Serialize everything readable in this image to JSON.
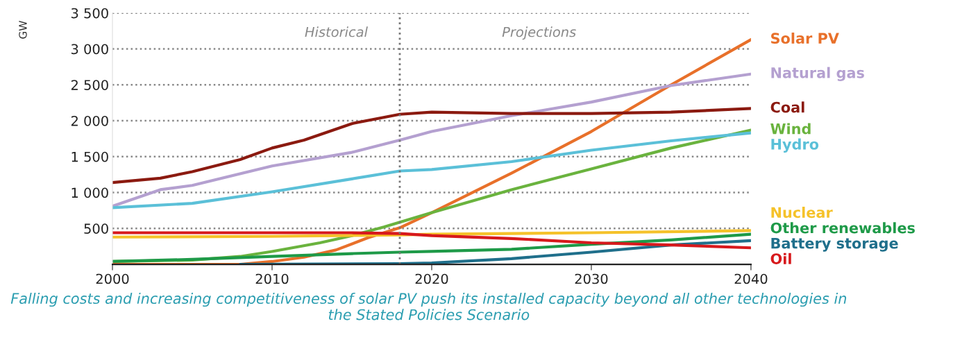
{
  "chart_data": {
    "type": "line",
    "ylabel": "GW",
    "series": [
      {
        "name": "Solar PV",
        "color": "#e8702a",
        "x": [
          2000,
          2008,
          2010,
          2012,
          2014,
          2016,
          2018,
          2020,
          2025,
          2030,
          2035,
          2040
        ],
        "values": [
          0,
          0,
          40,
          100,
          200,
          370,
          510,
          720,
          1270,
          1850,
          2500,
          3130
        ]
      },
      {
        "name": "Natural gas",
        "color": "#b4a0d0",
        "x": [
          2000,
          2003,
          2005,
          2010,
          2015,
          2018,
          2020,
          2025,
          2030,
          2035,
          2040
        ],
        "values": [
          810,
          1040,
          1100,
          1370,
          1560,
          1730,
          1850,
          2070,
          2260,
          2490,
          2650
        ]
      },
      {
        "name": "Coal",
        "color": "#8b1a10",
        "x": [
          2000,
          2003,
          2005,
          2008,
          2010,
          2012,
          2015,
          2018,
          2020,
          2025,
          2030,
          2035,
          2040
        ],
        "values": [
          1140,
          1200,
          1290,
          1460,
          1620,
          1730,
          1960,
          2090,
          2120,
          2100,
          2100,
          2120,
          2170
        ]
      },
      {
        "name": "Wind",
        "color": "#6ab33e",
        "x": [
          2000,
          2005,
          2008,
          2010,
          2013,
          2015,
          2017,
          2020,
          2025,
          2030,
          2035,
          2040
        ],
        "values": [
          40,
          60,
          110,
          180,
          300,
          400,
          520,
          720,
          1040,
          1330,
          1620,
          1870
        ]
      },
      {
        "name": "Hydro",
        "color": "#5bc0d8",
        "x": [
          2000,
          2005,
          2010,
          2015,
          2018,
          2020,
          2025,
          2030,
          2035,
          2040
        ],
        "values": [
          790,
          850,
          1010,
          1190,
          1300,
          1320,
          1430,
          1590,
          1720,
          1830
        ]
      },
      {
        "name": "Nuclear",
        "color": "#f5c22a",
        "x": [
          2000,
          2010,
          2018,
          2020,
          2025,
          2030,
          2040
        ],
        "values": [
          380,
          390,
          410,
          420,
          430,
          440,
          470
        ]
      },
      {
        "name": "Other renewables",
        "color": "#1e9a48",
        "x": [
          2000,
          2005,
          2010,
          2015,
          2018,
          2020,
          2025,
          2030,
          2035,
          2040
        ],
        "values": [
          40,
          70,
          110,
          150,
          170,
          180,
          210,
          280,
          340,
          420
        ]
      },
      {
        "name": "Battery storage",
        "color": "#1f6f8b",
        "x": [
          2008,
          2018,
          2020,
          2025,
          2030,
          2035,
          2040
        ],
        "values": [
          0,
          10,
          20,
          80,
          170,
          270,
          330
        ]
      },
      {
        "name": "Oil",
        "color": "#d7191c",
        "x": [
          2000,
          2005,
          2010,
          2015,
          2018,
          2020,
          2025,
          2030,
          2035,
          2040
        ],
        "values": [
          440,
          440,
          440,
          440,
          430,
          400,
          360,
          300,
          270,
          230
        ]
      }
    ],
    "xlim": [
      2000,
      2040
    ],
    "xticks": [
      2000,
      2010,
      2020,
      2030,
      2040
    ],
    "ylim": [
      0,
      3500
    ],
    "yticks": [
      {
        "value": 500,
        "label": "500"
      },
      {
        "value": 1000,
        "label": "1 000"
      },
      {
        "value": 1500,
        "label": "1 500"
      },
      {
        "value": 2000,
        "label": "2 000"
      },
      {
        "value": 2500,
        "label": "2 500"
      },
      {
        "value": 3000,
        "label": "3 000"
      },
      {
        "value": 3500,
        "label": "3 500"
      }
    ],
    "grid": "y",
    "legend": false,
    "ref_lines": [
      {
        "axis": "x",
        "value": 2018,
        "color": "#777777",
        "line_style": "dotted"
      }
    ],
    "annotations": [
      "Historical",
      "Projections",
      "Falling costs and increasing competitiveness of solar PV push its installed capacity beyond all other technologies in the Stated Policies Scenario"
    ]
  }
}
